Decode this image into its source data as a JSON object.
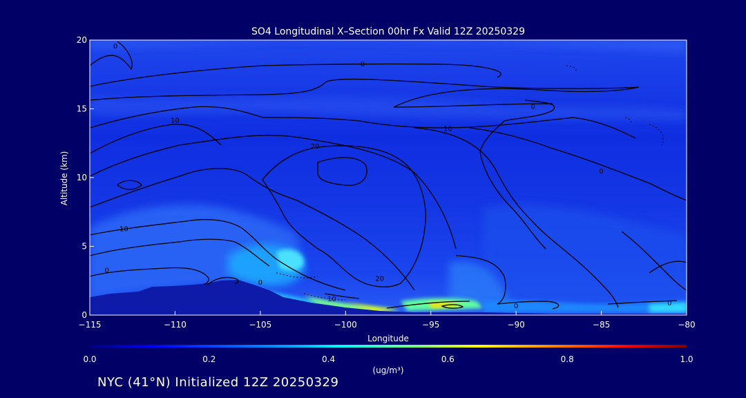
{
  "chart_data": {
    "type": "heatmap",
    "title": "SO4 Longitudinal X–Section 00hr  Fx Valid 12Z 20250329",
    "xlabel": "Longitude",
    "ylabel": "Altitude (km)",
    "xlim": [
      -115,
      -80
    ],
    "ylim": [
      0,
      20
    ],
    "x_ticks": [
      -115,
      -110,
      -105,
      -100,
      -95,
      -90,
      -85,
      -80
    ],
    "y_ticks": [
      0,
      5,
      10,
      15,
      20
    ],
    "colorbar": {
      "range": [
        0.0,
        1.0
      ],
      "ticks": [
        "0.0",
        "0.2",
        "0.4",
        "0.6",
        "0.8",
        "1.0"
      ],
      "units_label": "(ug/m³)",
      "colors": [
        "#00007f",
        "#0000ff",
        "#0080ff",
        "#00ffff",
        "#80ff80",
        "#ffff00",
        "#ff8000",
        "#ff0000",
        "#7f0000"
      ]
    },
    "contour_labels": [
      {
        "text": "0",
        "x": -113.5,
        "y": 19.6
      },
      {
        "text": "0",
        "x": -99.0,
        "y": 18.3
      },
      {
        "text": "0",
        "x": -89.0,
        "y": 15.2
      },
      {
        "text": "10",
        "x": -110.0,
        "y": 14.2
      },
      {
        "text": "10",
        "x": -94.0,
        "y": 13.6
      },
      {
        "text": "20",
        "x": -101.8,
        "y": 12.3
      },
      {
        "text": "0",
        "x": -85.0,
        "y": 10.5
      },
      {
        "text": "10",
        "x": -113.0,
        "y": 6.3
      },
      {
        "text": "0",
        "x": -114.0,
        "y": 3.3
      },
      {
        "text": "0",
        "x": -105.0,
        "y": 2.4
      },
      {
        "text": "20",
        "x": -98.0,
        "y": 2.7
      },
      {
        "text": "10",
        "x": -100.8,
        "y": 1.2
      },
      {
        "text": "0",
        "x": -90.0,
        "y": 0.7
      },
      {
        "text": "0",
        "x": -81.0,
        "y": 0.9
      }
    ],
    "concentration_features": [
      {
        "lon": -97.0,
        "alt": 0.7,
        "value": 0.65
      },
      {
        "lon": -99.0,
        "alt": 1.1,
        "value": 0.55
      },
      {
        "lon": -101.5,
        "alt": 1.6,
        "value": 0.45
      },
      {
        "lon": -94.0,
        "alt": 0.7,
        "value": 0.5
      },
      {
        "lon": -103.0,
        "alt": 3.9,
        "value": 0.4
      },
      {
        "lon": -109.0,
        "alt": 3.8,
        "value": 0.28
      },
      {
        "lon": -113.0,
        "alt": 3.2,
        "value": 0.27
      },
      {
        "lon": -105.0,
        "alt": 4.8,
        "value": 0.25
      },
      {
        "lon": -92.0,
        "alt": 3.0,
        "value": 0.2
      },
      {
        "lon": -84.0,
        "alt": 0.6,
        "value": 0.3
      }
    ]
  },
  "footer": {
    "text": "NYC (41°N) Initialized 12Z 20250329"
  }
}
